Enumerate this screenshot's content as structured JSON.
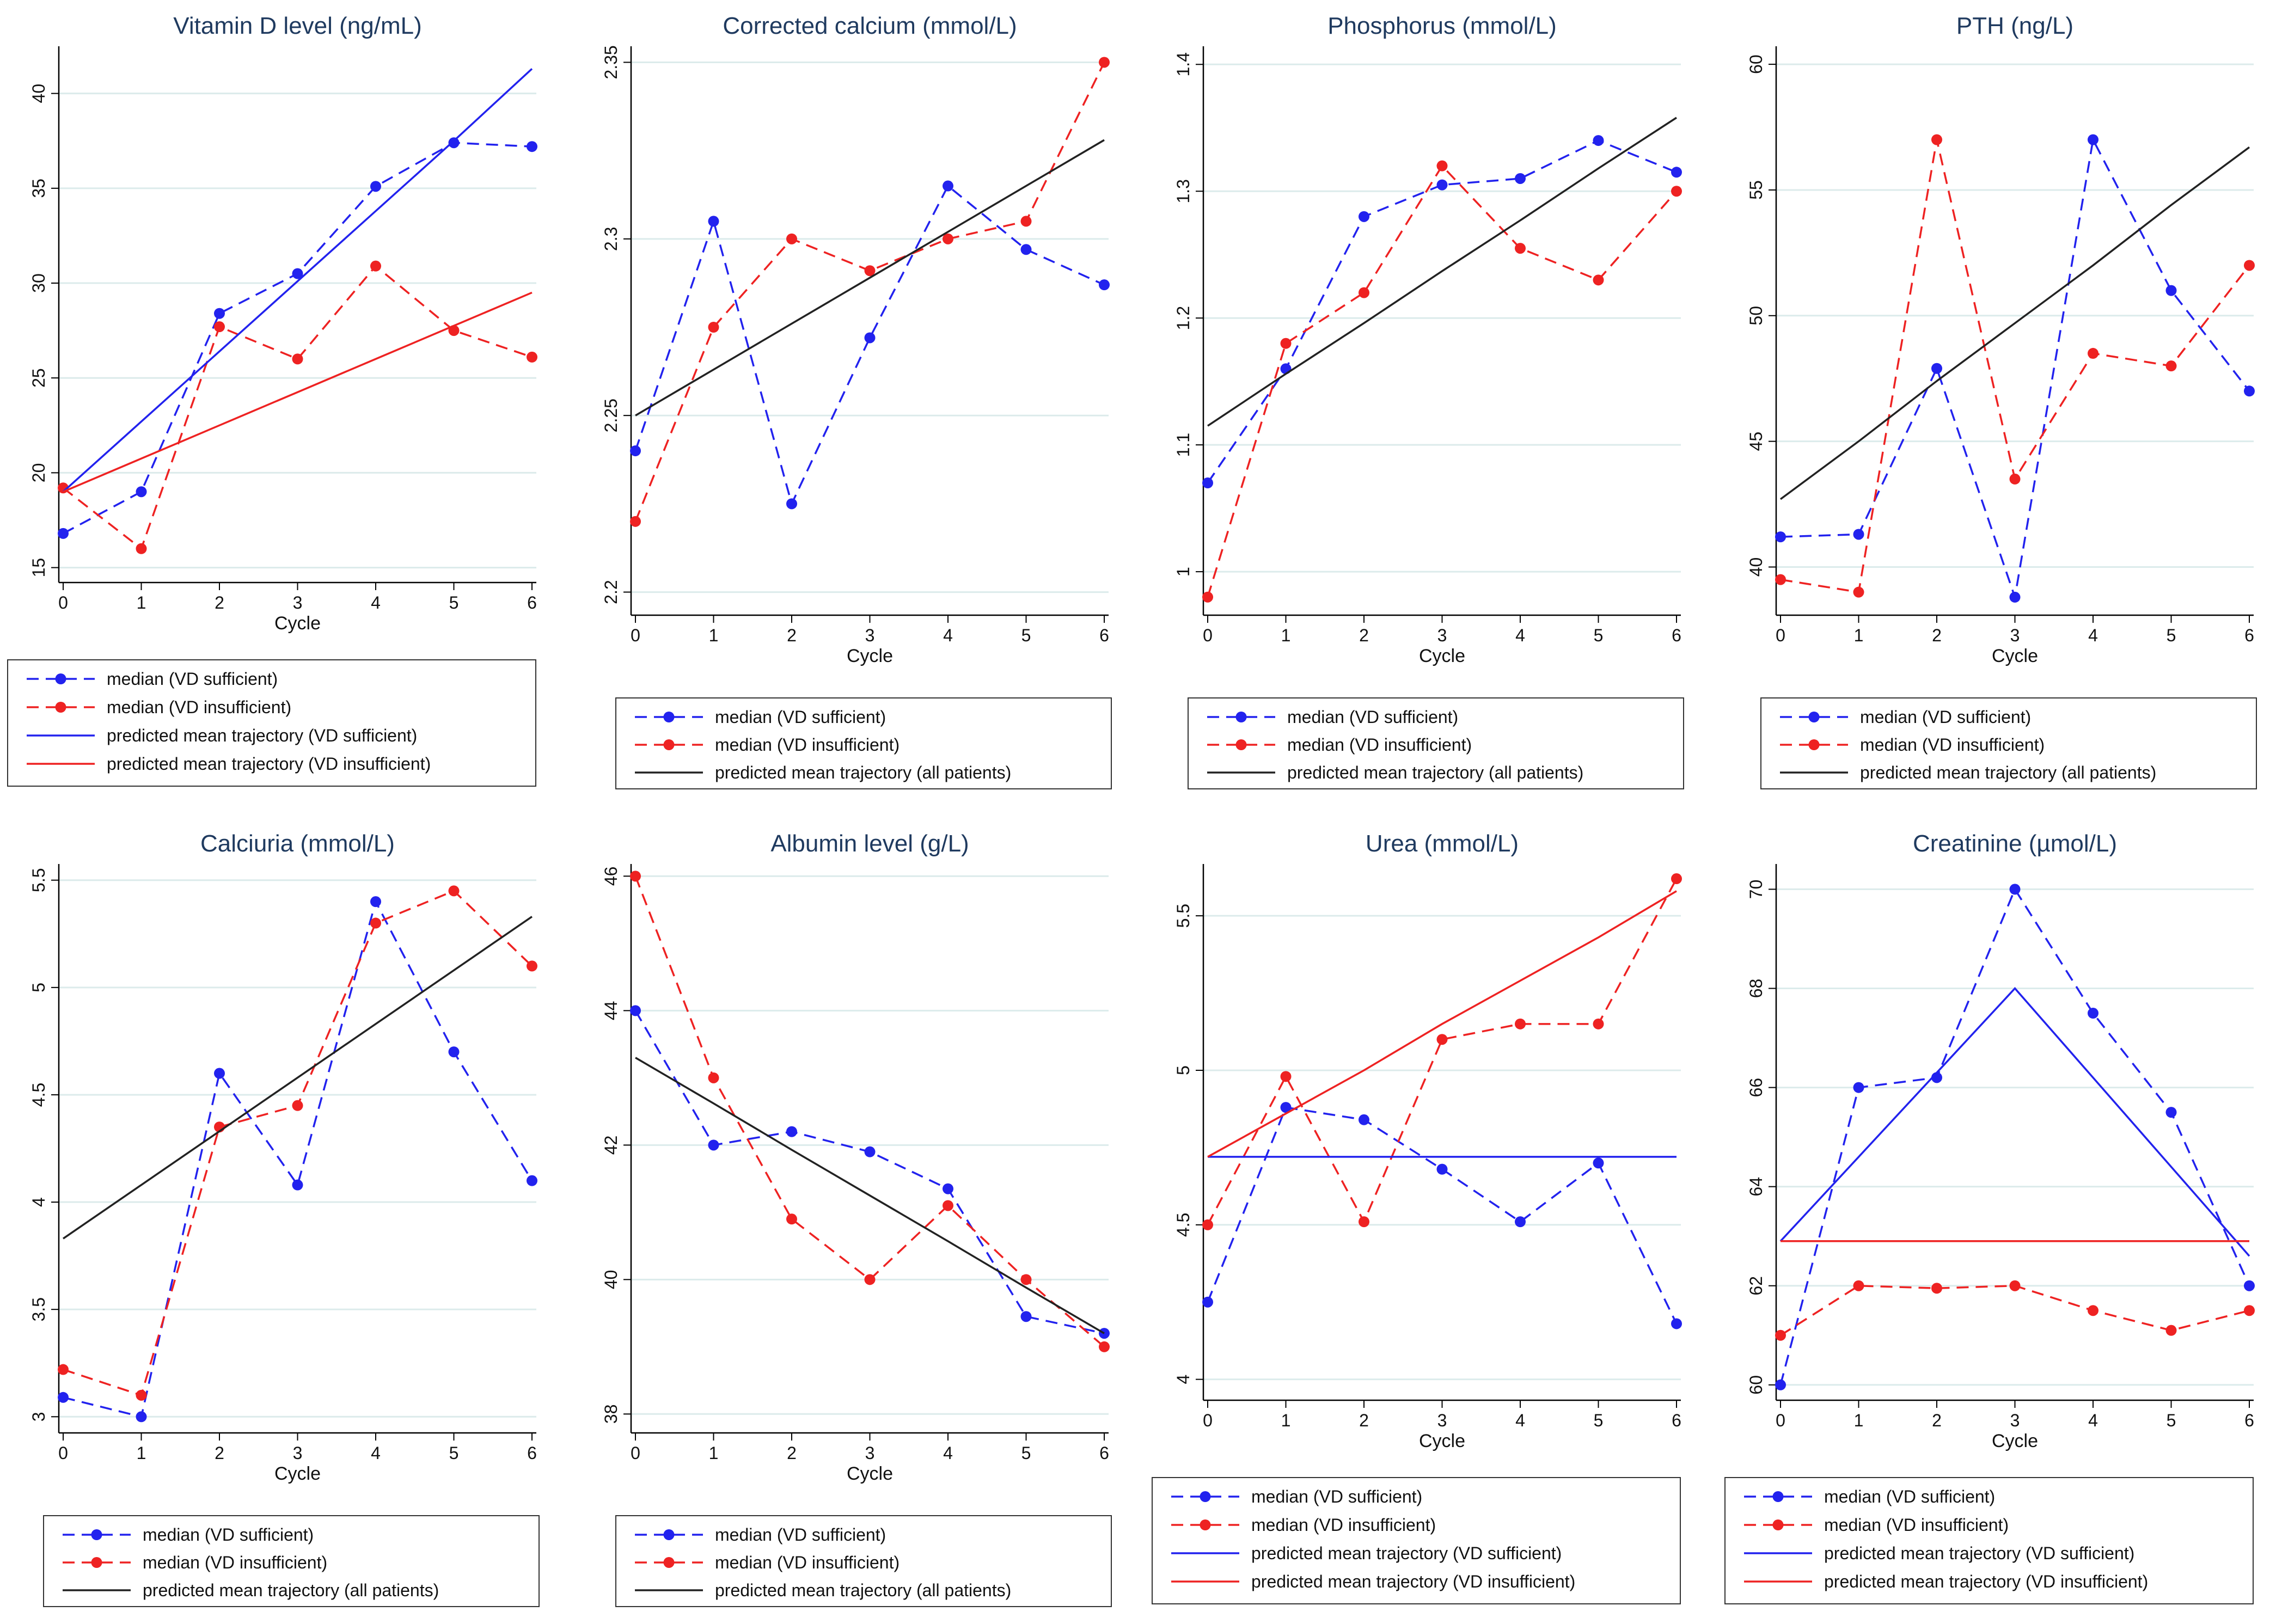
{
  "colors": {
    "sufficient": "#2222ee",
    "insufficient": "#ee2222",
    "all": "#222222",
    "grid": "#dcebeb",
    "title": "#1f3a5f",
    "axis": "#000000"
  },
  "xlabel": "Cycle",
  "x": [
    0,
    1,
    2,
    3,
    4,
    5,
    6
  ],
  "legend_labels": {
    "median_suff": "median (VD sufficient)",
    "median_insuff": "median (VD insufficient)",
    "pred_suff": "predicted mean trajectory (VD sufficient)",
    "pred_insuff": "predicted mean trajectory (VD insufficient)",
    "pred_all": "predicted mean trajectory (all patients)"
  },
  "chart_data": [
    {
      "type": "line",
      "title": "Vitamin D level (ng/mL)",
      "xlabel": "Cycle",
      "ylim": [
        14.5,
        42.2
      ],
      "yticks": [
        15,
        20,
        25,
        30,
        35,
        40
      ],
      "ytick_labels": [
        "15",
        "20",
        "25",
        "30",
        "35",
        "40"
      ],
      "series": [
        {
          "name": "median (VD sufficient)",
          "kind": "median",
          "group": "sufficient",
          "values": [
            16.8,
            19.0,
            28.4,
            30.5,
            35.1,
            37.4,
            37.2
          ]
        },
        {
          "name": "median (VD insufficient)",
          "kind": "median",
          "group": "insufficient",
          "values": [
            19.2,
            16.0,
            27.7,
            26.0,
            30.9,
            27.5,
            26.1
          ]
        },
        {
          "name": "predicted mean trajectory (VD sufficient)",
          "kind": "predicted",
          "group": "sufficient",
          "values": [
            19.0,
            22.7,
            26.4,
            30.1,
            33.8,
            37.5,
            41.3
          ]
        },
        {
          "name": "predicted mean trajectory (VD insufficient)",
          "kind": "predicted",
          "group": "insufficient",
          "values": [
            19.0,
            20.75,
            22.5,
            24.25,
            26.0,
            27.75,
            29.5
          ]
        }
      ]
    },
    {
      "type": "line",
      "title": "Corrected calcium (mmol/L)",
      "xlabel": "Cycle",
      "ylim": [
        2.195,
        2.353
      ],
      "yticks": [
        2.2,
        2.25,
        2.3,
        2.35
      ],
      "ytick_labels": [
        "2.2",
        "2.25",
        "2.3",
        "2.35"
      ],
      "series": [
        {
          "name": "median (VD sufficient)",
          "kind": "median",
          "group": "sufficient",
          "values": [
            2.24,
            2.305,
            2.225,
            2.272,
            2.315,
            2.297,
            2.287
          ]
        },
        {
          "name": "median (VD insufficient)",
          "kind": "median",
          "group": "insufficient",
          "values": [
            2.22,
            2.275,
            2.3,
            2.291,
            2.3,
            2.305,
            2.35
          ]
        },
        {
          "name": "predicted mean trajectory (all patients)",
          "kind": "predicted",
          "group": "all",
          "values": [
            2.25,
            2.263,
            2.276,
            2.289,
            2.302,
            2.315,
            2.328
          ]
        }
      ]
    },
    {
      "type": "line",
      "title": "Phosphorus (mmol/L)",
      "xlabel": "Cycle",
      "ylim": [
        0.97,
        1.41
      ],
      "yticks": [
        1.0,
        1.1,
        1.2,
        1.3,
        1.4
      ],
      "ytick_labels": [
        "1",
        "1.1",
        "1.2",
        "1.3",
        "1.4"
      ],
      "series": [
        {
          "name": "median (VD sufficient)",
          "kind": "median",
          "group": "sufficient",
          "values": [
            1.07,
            1.16,
            1.28,
            1.305,
            1.31,
            1.34,
            1.315
          ]
        },
        {
          "name": "median (VD insufficient)",
          "kind": "median",
          "group": "insufficient",
          "values": [
            0.98,
            1.18,
            1.22,
            1.32,
            1.255,
            1.23,
            1.3
          ]
        },
        {
          "name": "predicted mean trajectory (all patients)",
          "kind": "predicted",
          "group": "all",
          "values": [
            1.115,
            1.156,
            1.196,
            1.237,
            1.277,
            1.318,
            1.358
          ]
        }
      ]
    },
    {
      "type": "line",
      "title": "PTH (ng/L)",
      "xlabel": "Cycle",
      "ylim": [
        38.3,
        60.5
      ],
      "yticks": [
        40,
        45,
        50,
        55,
        60
      ],
      "ytick_labels": [
        "40",
        "45",
        "50",
        "55",
        "60"
      ],
      "series": [
        {
          "name": "median (VD sufficient)",
          "kind": "median",
          "group": "sufficient",
          "values": [
            41.2,
            41.3,
            47.9,
            38.8,
            57.0,
            51.0,
            47.0
          ]
        },
        {
          "name": "median (VD insufficient)",
          "kind": "median",
          "group": "insufficient",
          "values": [
            39.5,
            39.0,
            57.0,
            43.5,
            48.5,
            48.0,
            52.0
          ]
        },
        {
          "name": "predicted mean trajectory (all patients)",
          "kind": "predicted",
          "group": "all",
          "values": [
            42.7,
            45.0,
            47.4,
            49.7,
            52.0,
            54.4,
            56.7
          ]
        }
      ]
    },
    {
      "type": "line",
      "title": "Calciuria (mmol/L)",
      "xlabel": "Cycle",
      "ylim": [
        2.95,
        5.55
      ],
      "yticks": [
        3.0,
        3.5,
        4.0,
        4.5,
        5.0,
        5.5
      ],
      "ytick_labels": [
        "3",
        "3.5",
        "4",
        "4.5",
        "5",
        "5.5"
      ],
      "series": [
        {
          "name": "median (VD sufficient)",
          "kind": "median",
          "group": "sufficient",
          "values": [
            3.09,
            3.0,
            4.6,
            4.08,
            5.4,
            4.7,
            4.1
          ]
        },
        {
          "name": "median (VD insufficient)",
          "kind": "median",
          "group": "insufficient",
          "values": [
            3.22,
            3.1,
            4.35,
            4.45,
            5.3,
            5.45,
            5.1
          ]
        },
        {
          "name": "predicted mean trajectory (all patients)",
          "kind": "predicted",
          "group": "all",
          "values": [
            3.83,
            4.08,
            4.33,
            4.58,
            4.83,
            5.08,
            5.33
          ]
        }
      ]
    },
    {
      "type": "line",
      "title": "Albumin level (g/L)",
      "xlabel": "Cycle",
      "ylim": [
        37.8,
        46.1
      ],
      "yticks": [
        38,
        40,
        42,
        44,
        46
      ],
      "ytick_labels": [
        "38",
        "40",
        "42",
        "44",
        "46"
      ],
      "series": [
        {
          "name": "median (VD sufficient)",
          "kind": "median",
          "group": "sufficient",
          "values": [
            44.0,
            42.0,
            42.2,
            41.9,
            41.35,
            39.45,
            39.2
          ]
        },
        {
          "name": "median (VD insufficient)",
          "kind": "median",
          "group": "insufficient",
          "values": [
            46.0,
            43.0,
            40.9,
            40.0,
            41.1,
            40.0,
            39.0
          ]
        },
        {
          "name": "predicted mean trajectory (all patients)",
          "kind": "predicted",
          "group": "all",
          "values": [
            43.3,
            42.62,
            41.93,
            41.25,
            40.57,
            39.88,
            39.2
          ]
        }
      ]
    },
    {
      "type": "line",
      "title": "Urea (mmol/L)",
      "xlabel": "Cycle",
      "ylim": [
        3.95,
        5.65
      ],
      "yticks": [
        4.0,
        4.5,
        5.0,
        5.5
      ],
      "ytick_labels": [
        "4",
        "4.5",
        "5",
        "5.5"
      ],
      "series": [
        {
          "name": "median (VD sufficient)",
          "kind": "median",
          "group": "sufficient",
          "values": [
            4.25,
            4.88,
            4.84,
            4.68,
            4.51,
            4.7,
            4.18
          ]
        },
        {
          "name": "median (VD insufficient)",
          "kind": "median",
          "group": "insufficient",
          "values": [
            4.5,
            4.98,
            4.51,
            5.1,
            5.15,
            5.15,
            5.62
          ]
        },
        {
          "name": "predicted mean trajectory (VD sufficient)",
          "kind": "predicted",
          "group": "sufficient",
          "values": [
            4.72,
            4.72,
            4.72,
            4.72,
            4.72,
            4.72,
            4.72
          ]
        },
        {
          "name": "predicted mean trajectory (VD insufficient)",
          "kind": "predicted",
          "group": "insufficient",
          "values": [
            4.72,
            4.86,
            5.0,
            5.15,
            5.29,
            5.43,
            5.58
          ]
        }
      ]
    },
    {
      "type": "line",
      "title": "Creatinine (µmol/L)",
      "xlabel": "Cycle",
      "ylim": [
        59.8,
        70.4
      ],
      "yticks": [
        60,
        62,
        64,
        66,
        68,
        70
      ],
      "ytick_labels": [
        "60",
        "62",
        "64",
        "66",
        "68",
        "70"
      ],
      "series": [
        {
          "name": "median (VD sufficient)",
          "kind": "median",
          "group": "sufficient",
          "values": [
            60.0,
            66.0,
            66.2,
            70.0,
            67.5,
            65.5,
            62.0
          ]
        },
        {
          "name": "median (VD insufficient)",
          "kind": "median",
          "group": "insufficient",
          "values": [
            61.0,
            62.0,
            61.95,
            62.0,
            61.5,
            61.1,
            61.5
          ]
        },
        {
          "name": "predicted mean trajectory (VD sufficient)",
          "kind": "predicted",
          "group": "sufficient",
          "values": [
            62.9,
            64.6,
            66.3,
            68.0,
            66.2,
            64.4,
            62.6
          ]
        },
        {
          "name": "predicted mean trajectory (VD insufficient)",
          "kind": "predicted",
          "group": "insufficient",
          "values": [
            62.9,
            62.9,
            62.9,
            62.9,
            62.9,
            62.9,
            62.9
          ]
        }
      ]
    }
  ]
}
